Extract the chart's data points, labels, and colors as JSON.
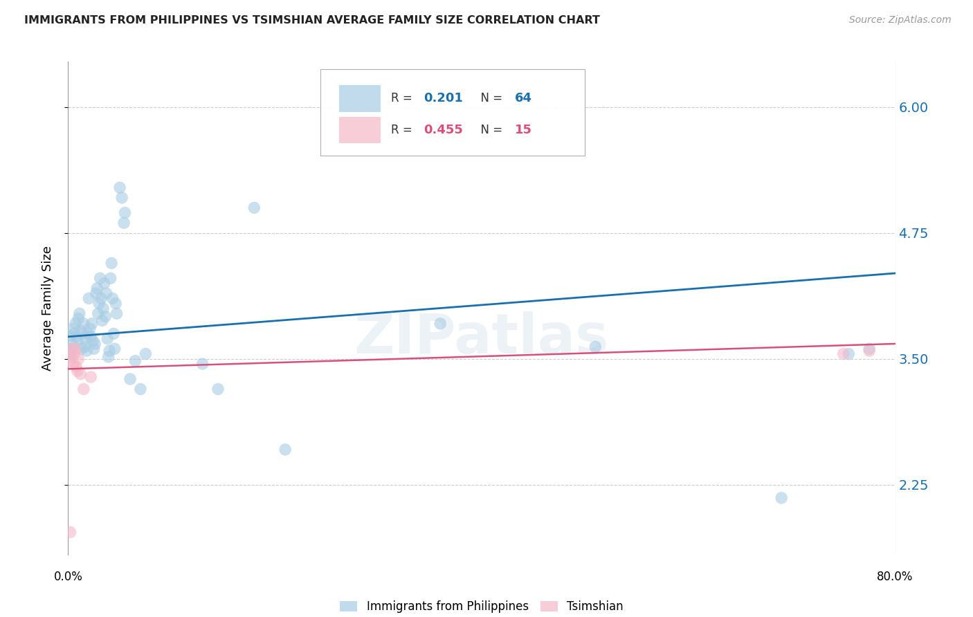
{
  "title": "IMMIGRANTS FROM PHILIPPINES VS TSIMSHIAN AVERAGE FAMILY SIZE CORRELATION CHART",
  "source": "Source: ZipAtlas.com",
  "ylabel": "Average Family Size",
  "yticks": [
    2.25,
    3.5,
    4.75,
    6.0
  ],
  "xlim": [
    0.0,
    0.8
  ],
  "ylim": [
    1.55,
    6.45
  ],
  "watermark": "ZIPatlas",
  "blue_scatter": [
    [
      0.001,
      3.73
    ],
    [
      0.002,
      3.6
    ],
    [
      0.003,
      3.55
    ],
    [
      0.004,
      3.65
    ],
    [
      0.005,
      3.8
    ],
    [
      0.006,
      3.75
    ],
    [
      0.007,
      3.85
    ],
    [
      0.008,
      3.72
    ],
    [
      0.009,
      3.68
    ],
    [
      0.01,
      3.9
    ],
    [
      0.011,
      3.95
    ],
    [
      0.012,
      3.78
    ],
    [
      0.013,
      3.6
    ],
    [
      0.014,
      3.75
    ],
    [
      0.015,
      3.85
    ],
    [
      0.016,
      3.62
    ],
    [
      0.017,
      3.7
    ],
    [
      0.018,
      3.58
    ],
    [
      0.019,
      3.75
    ],
    [
      0.02,
      4.1
    ],
    [
      0.021,
      3.8
    ],
    [
      0.022,
      3.72
    ],
    [
      0.023,
      3.85
    ],
    [
      0.024,
      3.68
    ],
    [
      0.025,
      3.6
    ],
    [
      0.026,
      3.65
    ],
    [
      0.027,
      4.15
    ],
    [
      0.028,
      4.2
    ],
    [
      0.029,
      3.95
    ],
    [
      0.03,
      4.05
    ],
    [
      0.031,
      4.3
    ],
    [
      0.032,
      4.1
    ],
    [
      0.033,
      3.88
    ],
    [
      0.034,
      4.0
    ],
    [
      0.035,
      4.25
    ],
    [
      0.036,
      3.92
    ],
    [
      0.037,
      4.15
    ],
    [
      0.038,
      3.7
    ],
    [
      0.039,
      3.52
    ],
    [
      0.04,
      3.58
    ],
    [
      0.041,
      4.3
    ],
    [
      0.042,
      4.45
    ],
    [
      0.043,
      4.1
    ],
    [
      0.044,
      3.75
    ],
    [
      0.045,
      3.6
    ],
    [
      0.046,
      4.05
    ],
    [
      0.047,
      3.95
    ],
    [
      0.05,
      5.2
    ],
    [
      0.052,
      5.1
    ],
    [
      0.054,
      4.85
    ],
    [
      0.055,
      4.95
    ],
    [
      0.06,
      3.3
    ],
    [
      0.065,
      3.48
    ],
    [
      0.07,
      3.2
    ],
    [
      0.075,
      3.55
    ],
    [
      0.13,
      3.45
    ],
    [
      0.145,
      3.2
    ],
    [
      0.18,
      5.0
    ],
    [
      0.21,
      2.6
    ],
    [
      0.36,
      3.85
    ],
    [
      0.51,
      3.62
    ],
    [
      0.69,
      2.12
    ],
    [
      0.755,
      3.55
    ],
    [
      0.775,
      3.6
    ]
  ],
  "pink_scatter": [
    [
      0.001,
      3.55
    ],
    [
      0.002,
      3.48
    ],
    [
      0.003,
      3.52
    ],
    [
      0.004,
      3.6
    ],
    [
      0.005,
      3.45
    ],
    [
      0.006,
      3.55
    ],
    [
      0.007,
      3.6
    ],
    [
      0.008,
      3.42
    ],
    [
      0.009,
      3.38
    ],
    [
      0.01,
      3.5
    ],
    [
      0.012,
      3.35
    ],
    [
      0.015,
      3.2
    ],
    [
      0.022,
      3.32
    ],
    [
      0.75,
      3.55
    ],
    [
      0.775,
      3.58
    ]
  ],
  "blue_line_x": [
    0.0,
    0.8
  ],
  "blue_line_y": [
    3.72,
    4.35
  ],
  "pink_line_x": [
    0.0,
    0.8
  ],
  "pink_line_y": [
    3.4,
    3.65
  ],
  "pink_scatter_low": [
    0.002,
    1.78
  ],
  "blue_color": "#a8cce4",
  "pink_color": "#f4b8c8",
  "blue_line_color": "#1a6faf",
  "pink_line_color": "#d94f7a",
  "scatter_alpha": 0.6,
  "scatter_size": 160,
  "legend_r_blue": "0.201",
  "legend_n_blue": "64",
  "legend_r_pink": "0.455",
  "legend_n_pink": "15"
}
